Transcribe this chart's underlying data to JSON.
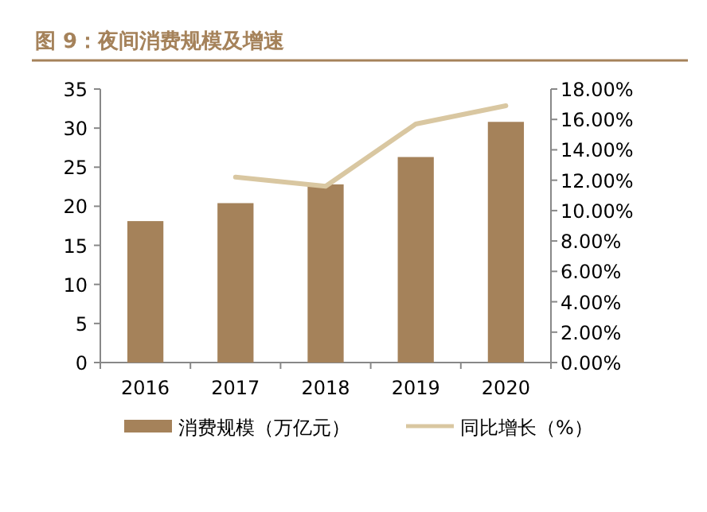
{
  "chart_data": {
    "type": "bar",
    "title": "图 9：夜间消费规模及增速",
    "categories": [
      "2016",
      "2017",
      "2018",
      "2019",
      "2020"
    ],
    "series": [
      {
        "name": "消费规模（万亿元）",
        "color": "#a5825a",
        "values": [
          18.1,
          20.4,
          22.8,
          26.3,
          30.8
        ]
      },
      {
        "name": "同比增长（%）",
        "color": "#d9c7a1",
        "type": "line",
        "axis": "y2",
        "values": [
          null,
          12.2,
          11.6,
          15.7,
          16.9
        ]
      }
    ],
    "ylim": [
      0,
      35
    ],
    "yticks": [
      0,
      5,
      10,
      15,
      20,
      25,
      30,
      35
    ],
    "y2lim": [
      0,
      18
    ],
    "y2ticks": [
      {
        "value": 0,
        "label": "0.00%"
      },
      {
        "value": 2,
        "label": "2.00%"
      },
      {
        "value": 4,
        "label": "4.00%"
      },
      {
        "value": 6,
        "label": "6.00%"
      },
      {
        "value": 8,
        "label": "8.00%"
      },
      {
        "value": 10,
        "label": "10.00%"
      },
      {
        "value": 12,
        "label": "12.00%"
      },
      {
        "value": 14,
        "label": "14.00%"
      },
      {
        "value": 16,
        "label": "16.00%"
      },
      {
        "value": 18,
        "label": "18.00%"
      }
    ],
    "legend": "bottom",
    "grid": false
  }
}
